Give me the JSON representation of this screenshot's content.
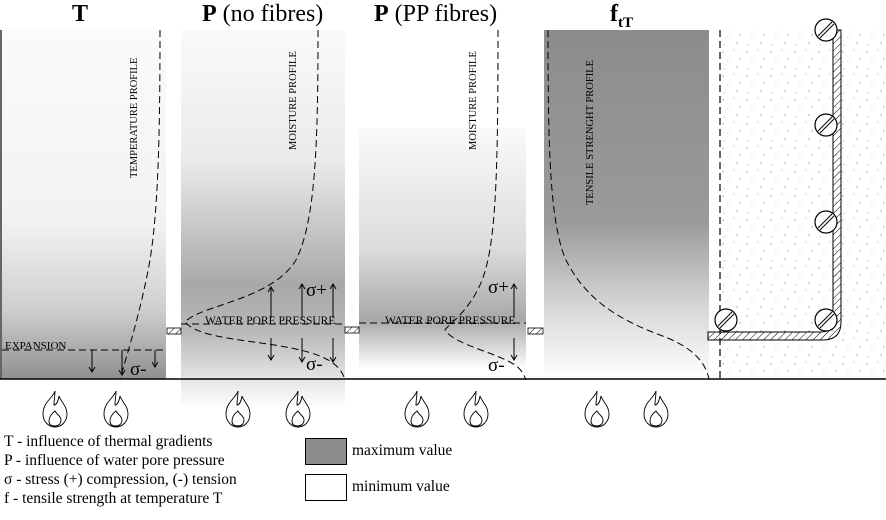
{
  "headers": {
    "t": {
      "main": "T",
      "rest": ""
    },
    "p1": {
      "main": "P",
      "rest": " (no fibres)"
    },
    "p2": {
      "main": "P",
      "rest": " (PP fibres)"
    },
    "f": {
      "main": "f",
      "sub": "tT"
    }
  },
  "profile_labels": {
    "temperature": "TEMPERATURE PROFILE",
    "moisture1": "MOISTURE PROFILE",
    "moisture2": "MOISTURE PROFILE",
    "tensile": "TENSILE STRENGHT PROFILE"
  },
  "annotations": {
    "expansion": "EXPANSION",
    "water_pore_pressure": "WATER PORE PRESSURE",
    "sigma_plus": "σ+",
    "sigma_minus": "σ-"
  },
  "legend": {
    "items": [
      "T -  influence of thermal gradients",
      "P -  influence of water pore pressure",
      "σ -  stress (+) compression, (-) tension",
      "f -  tensile strength at temperature T"
    ],
    "max_label": "maximum value",
    "min_label": "minimum value"
  },
  "colors": {
    "max_shade": "#8c8c8c",
    "min_shade": "#ffffff",
    "line": "#000000"
  },
  "icons": {
    "flame": "flame-icon",
    "rebar": "rebar-section-icon"
  }
}
